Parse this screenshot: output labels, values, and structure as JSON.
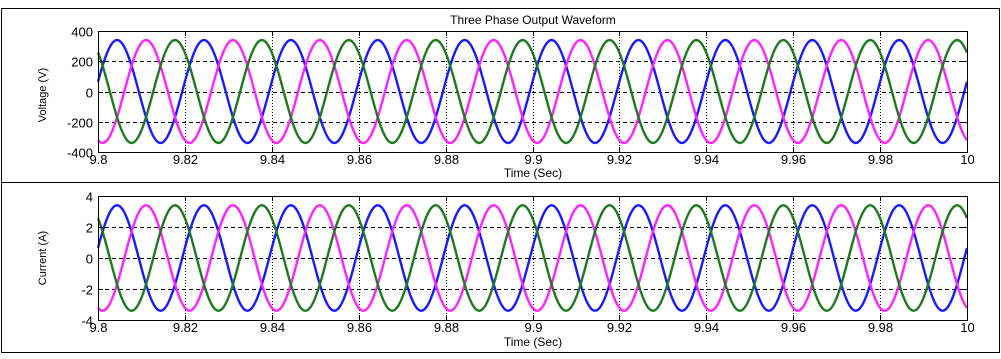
{
  "chart_data": [
    {
      "type": "line",
      "title": "Three Phase Output Waveform",
      "xlabel": "Time (Sec)",
      "ylabel": "Voltage (V)",
      "xlim": [
        9.8,
        10
      ],
      "ylim": [
        -400,
        400
      ],
      "xticks": [
        9.8,
        9.82,
        9.84,
        9.86,
        9.88,
        9.9,
        9.92,
        9.94,
        9.96,
        9.98,
        10
      ],
      "xtick_labels": [
        "9.8",
        "9.82",
        "9.84",
        "9.86",
        "9.88",
        "9.9",
        "9.92",
        "9.94",
        "9.96",
        "9.98",
        "10"
      ],
      "yticks": [
        -400,
        -200,
        0,
        200,
        400
      ],
      "ytick_labels": [
        "-400",
        "-200",
        "0",
        "200",
        "400"
      ],
      "grid": "dotted",
      "waveform": {
        "kind": "sine",
        "frequency_hz": 50,
        "amplitude": 340
      },
      "series": [
        {
          "color": "#1a1aff",
          "phase_deg": 11
        },
        {
          "color": "#ff22ff",
          "phase_deg": -109
        },
        {
          "color": "#1f7a1f",
          "phase_deg": 131
        }
      ]
    },
    {
      "type": "line",
      "title": "",
      "xlabel": "Time (Sec)",
      "ylabel": "Current (A)",
      "xlim": [
        9.8,
        10
      ],
      "ylim": [
        -4,
        4
      ],
      "xticks": [
        9.8,
        9.82,
        9.84,
        9.86,
        9.88,
        9.9,
        9.92,
        9.94,
        9.96,
        9.98,
        10
      ],
      "xtick_labels": [
        "9.8",
        "9.82",
        "9.84",
        "9.86",
        "9.88",
        "9.9",
        "9.92",
        "9.94",
        "9.96",
        "9.98",
        "10"
      ],
      "yticks": [
        -4,
        -2,
        0,
        2,
        4
      ],
      "ytick_labels": [
        "-4",
        "-2",
        "0",
        "2",
        "4"
      ],
      "grid": "dotted",
      "waveform": {
        "kind": "sine",
        "frequency_hz": 50,
        "amplitude": 3.4
      },
      "series": [
        {
          "color": "#1a1aff",
          "phase_deg": 11
        },
        {
          "color": "#ff22ff",
          "phase_deg": -109
        },
        {
          "color": "#1f7a1f",
          "phase_deg": 131
        }
      ]
    }
  ]
}
